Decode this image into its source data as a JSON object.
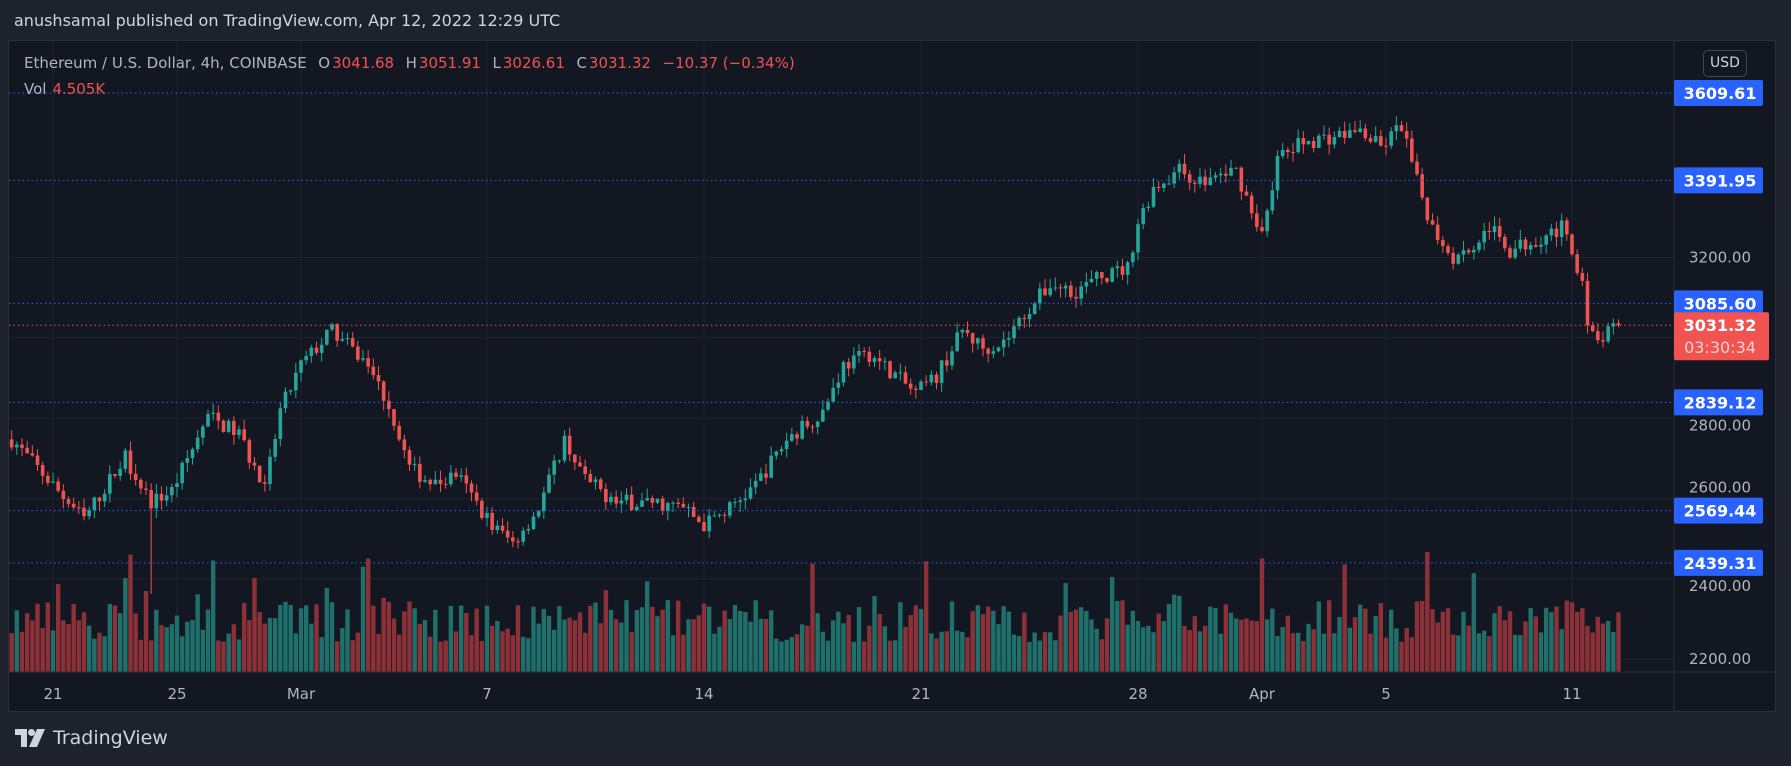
{
  "header": {
    "published": "anushsamal published on TradingView.com, Apr 12, 2022 12:29 UTC"
  },
  "legend": {
    "symbol": "Ethereum / U.S. Dollar, 4h, COINBASE",
    "o_label": "O",
    "o": "3041.68",
    "h_label": "H",
    "h": "3051.91",
    "l_label": "L",
    "l": "3026.61",
    "c_label": "C",
    "c": "3031.32",
    "change": "−10.37 (−0.34%)",
    "vol_label": "Vol",
    "vol": "4.505K"
  },
  "currency_button": "USD",
  "footer": {
    "brand": "TradingView",
    "logo_icon": "tradingview-logo-icon"
  },
  "colors": {
    "background": "#131722",
    "up": "#26a69a",
    "down": "#ef5350",
    "level_line": "#2962ff",
    "price_label": "#f05350"
  },
  "chart_data": {
    "type": "candlestick",
    "interval": "4h",
    "symbol": "ETHUSD",
    "price_ticks": [
      "3200.00",
      "2800.00",
      "2600.00",
      "2400.00",
      "2200.00"
    ],
    "price_tick_values": [
      3200,
      2800,
      2600,
      2400,
      2200
    ],
    "time_ticks": [
      {
        "label": "21",
        "date": "2022-02-21"
      },
      {
        "label": "25",
        "date": "2022-02-25"
      },
      {
        "label": "Mar",
        "date": "2022-03-01"
      },
      {
        "label": "7",
        "date": "2022-03-07"
      },
      {
        "label": "14",
        "date": "2022-03-14"
      },
      {
        "label": "21",
        "date": "2022-03-21"
      },
      {
        "label": "28",
        "date": "2022-03-28"
      },
      {
        "label": "Apr",
        "date": "2022-04-01"
      },
      {
        "label": "5",
        "date": "2022-04-05"
      },
      {
        "label": "11",
        "date": "2022-04-11"
      }
    ],
    "levels": [
      "3609.61",
      "3391.95",
      "3085.60",
      "2839.12",
      "2569.44",
      "2439.31"
    ],
    "last_price": "3031.32",
    "countdown": "03:30:34",
    "grid": true,
    "price_path": [
      [
        "2022-02-19T16:00",
        2747
      ],
      [
        "2022-02-20T20:00",
        2647
      ],
      [
        "2022-02-22T00:00",
        2548
      ],
      [
        "2022-02-23T08:00",
        2704
      ],
      [
        "2022-02-24T04:00",
        2590,
        2362
      ],
      [
        "2022-02-24T20:00",
        2619
      ],
      [
        "2022-02-26T00:00",
        2804
      ],
      [
        "2022-02-27T00:00",
        2761
      ],
      [
        "2022-02-27T20:00",
        2619
      ],
      [
        "2022-02-28T08:00",
        2818
      ],
      [
        "2022-03-01T00:00",
        2932
      ],
      [
        "2022-03-02T00:00",
        3018
      ],
      [
        "2022-03-03T04:00",
        2932
      ],
      [
        "2022-03-03T20:00",
        2832
      ],
      [
        "2022-03-04T12:00",
        2676
      ],
      [
        "2022-03-05T08:00",
        2633
      ],
      [
        "2022-03-06T00:00",
        2661
      ],
      [
        "2022-03-07T04:00",
        2533
      ],
      [
        "2022-03-07T20:00",
        2490
      ],
      [
        "2022-03-08T16:00",
        2576
      ],
      [
        "2022-03-09T12:00",
        2747
      ],
      [
        "2022-03-10T04:00",
        2647
      ],
      [
        "2022-03-11T04:00",
        2590
      ],
      [
        "2022-03-12T08:00",
        2590
      ],
      [
        "2022-03-13T08:00",
        2576
      ],
      [
        "2022-03-14T00:00",
        2533
      ],
      [
        "2022-03-14T20:00",
        2576
      ],
      [
        "2022-03-15T16:00",
        2633
      ],
      [
        "2022-03-16T16:00",
        2747
      ],
      [
        "2022-03-17T20:00",
        2818
      ],
      [
        "2022-03-18T12:00",
        2932
      ],
      [
        "2022-03-19T08:00",
        2960
      ],
      [
        "2022-03-20T00:00",
        2918
      ],
      [
        "2022-03-20T20:00",
        2861
      ],
      [
        "2022-03-21T12:00",
        2904
      ],
      [
        "2022-03-22T08:00",
        3018
      ],
      [
        "2022-03-23T00:00",
        2975
      ],
      [
        "2022-03-23T16:00",
        2989
      ],
      [
        "2022-03-24T12:00",
        3075
      ],
      [
        "2022-03-25T04:00",
        3132
      ],
      [
        "2022-03-26T00:00",
        3117
      ],
      [
        "2022-03-26T16:00",
        3146
      ],
      [
        "2022-03-27T16:00",
        3174
      ],
      [
        "2022-03-28T00:00",
        3288
      ],
      [
        "2022-03-28T12:00",
        3374
      ],
      [
        "2022-03-29T08:00",
        3417
      ],
      [
        "2022-03-30T00:00",
        3388
      ],
      [
        "2022-03-31T04:00",
        3417
      ],
      [
        "2022-03-31T16:00",
        3317
      ],
      [
        "2022-04-01T00:00",
        3260
      ],
      [
        "2022-04-01T12:00",
        3445
      ],
      [
        "2022-04-02T08:00",
        3488
      ],
      [
        "2022-04-03T08:00",
        3502
      ],
      [
        "2022-04-04T04:00",
        3516
      ],
      [
        "2022-04-04T20:00",
        3473
      ],
      [
        "2022-04-05T12:00",
        3530
      ],
      [
        "2022-04-06T00:00",
        3388
      ],
      [
        "2022-04-06T12:00",
        3274
      ],
      [
        "2022-04-07T04:00",
        3203
      ],
      [
        "2022-04-07T20:00",
        3231
      ],
      [
        "2022-04-08T08:00",
        3274
      ],
      [
        "2022-04-09T00:00",
        3217
      ],
      [
        "2022-04-09T20:00",
        3246
      ],
      [
        "2022-04-10T16:00",
        3274
      ],
      [
        "2022-04-11T00:00",
        3203
      ],
      [
        "2022-04-11T08:00",
        3160
      ],
      [
        "2022-04-11T12:00",
        3018
      ],
      [
        "2022-04-11T20:00",
        2989
      ],
      [
        "2022-04-12T12:00",
        3031.32
      ]
    ]
  }
}
